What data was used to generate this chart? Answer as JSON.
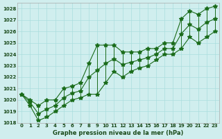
{
  "xlabel": "Graphe pression niveau de la mer (hPa)",
  "x_labels": [
    "0",
    "1",
    "2",
    "3",
    "4",
    "5",
    "6",
    "7",
    "8",
    "9",
    "10",
    "11",
    "12",
    "13",
    "14",
    "15",
    "16",
    "17",
    "18",
    "19",
    "20",
    "21",
    "22",
    "23"
  ],
  "ylim": [
    1018,
    1028.5
  ],
  "yticks": [
    1018,
    1019,
    1020,
    1021,
    1022,
    1023,
    1024,
    1025,
    1026,
    1027,
    1028
  ],
  "background_color": "#d0eeee",
  "grid_color": "#aadddd",
  "line_color": "#1a6b1a",
  "series_high": [
    1020.5,
    1020.0,
    1019.5,
    1020.0,
    1020.0,
    1021.0,
    1021.2,
    1021.5,
    1023.2,
    1024.8,
    1024.8,
    1024.8,
    1024.2,
    1024.2,
    1024.2,
    1024.5,
    1024.5,
    1025.0,
    1025.0,
    1027.1,
    1027.8,
    1027.5,
    1028.0,
    1028.2
  ],
  "series_low": [
    1020.5,
    1019.5,
    1018.2,
    1018.5,
    1019.0,
    1019.5,
    1020.0,
    1020.2,
    1020.5,
    1020.5,
    1021.5,
    1022.5,
    1022.0,
    1022.5,
    1022.8,
    1023.0,
    1023.5,
    1024.0,
    1024.0,
    1024.5,
    1025.5,
    1025.0,
    1025.5,
    1026.0
  ],
  "series_mid": [
    1020.5,
    1019.8,
    1018.8,
    1019.2,
    1019.5,
    1020.2,
    1020.6,
    1020.8,
    1022.0,
    1022.6,
    1023.2,
    1023.6,
    1023.1,
    1023.3,
    1023.5,
    1023.7,
    1024.0,
    1024.5,
    1024.5,
    1025.8,
    1026.6,
    1026.2,
    1026.8,
    1027.1
  ]
}
